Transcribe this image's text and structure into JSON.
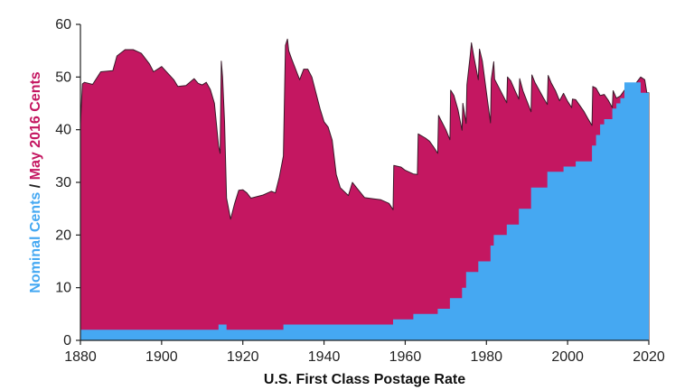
{
  "chart_data": {
    "type": "area",
    "title": "",
    "xlabel": "U.S. First Class Postage Rate",
    "ylabel_parts": [
      {
        "text": "Nominal Cents",
        "color": "#45a8f2"
      },
      {
        "text": " / ",
        "color": "#222222"
      },
      {
        "text": "May 2016 Cents",
        "color": "#c41761"
      }
    ],
    "xlim": [
      1880,
      2020
    ],
    "ylim": [
      0,
      60
    ],
    "x_ticks": [
      "1880",
      "1900",
      "1920",
      "1940",
      "1960",
      "1980",
      "2000",
      "2020"
    ],
    "y_ticks": [
      "0",
      "10",
      "20",
      "30",
      "40",
      "50",
      "60"
    ],
    "grid": false,
    "series": [
      {
        "name": "May 2016 Cents",
        "color": "#c41761",
        "points": [
          [
            1880,
            41
          ],
          [
            1880.5,
            48.7
          ],
          [
            1881,
            49
          ],
          [
            1883,
            48.6
          ],
          [
            1885,
            51
          ],
          [
            1888,
            51.2
          ],
          [
            1889,
            54
          ],
          [
            1891,
            55.2
          ],
          [
            1893,
            55.2
          ],
          [
            1895,
            54.5
          ],
          [
            1897,
            52.5
          ],
          [
            1898,
            51
          ],
          [
            1900,
            52
          ],
          [
            1903,
            49.5
          ],
          [
            1904,
            48.2
          ],
          [
            1906,
            48.4
          ],
          [
            1908,
            49.7
          ],
          [
            1909,
            48.8
          ],
          [
            1910,
            48.5
          ],
          [
            1911,
            49
          ],
          [
            1912,
            47.6
          ],
          [
            1913,
            45
          ],
          [
            1914,
            37
          ],
          [
            1914.4,
            35.5
          ],
          [
            1914.7,
            53
          ],
          [
            1915,
            50
          ],
          [
            1915.5,
            41.5
          ],
          [
            1916,
            27
          ],
          [
            1917,
            23
          ],
          [
            1918,
            26
          ],
          [
            1919,
            28.5
          ],
          [
            1920,
            28.6
          ],
          [
            1921,
            28
          ],
          [
            1922,
            27
          ],
          [
            1925,
            27.6
          ],
          [
            1927,
            28.3
          ],
          [
            1928,
            28
          ],
          [
            1929,
            31
          ],
          [
            1930,
            35
          ],
          [
            1930.5,
            56
          ],
          [
            1931,
            57.2
          ],
          [
            1931.3,
            55
          ],
          [
            1932,
            53.5
          ],
          [
            1933,
            51.5
          ],
          [
            1934,
            49.5
          ],
          [
            1935,
            51.5
          ],
          [
            1936,
            51.5
          ],
          [
            1937,
            50
          ],
          [
            1938,
            47
          ],
          [
            1939,
            44
          ],
          [
            1940,
            41.5
          ],
          [
            1941,
            40.5
          ],
          [
            1942,
            38
          ],
          [
            1943,
            31.5
          ],
          [
            1944,
            29
          ],
          [
            1946,
            27.5
          ],
          [
            1947,
            30
          ],
          [
            1948,
            29
          ],
          [
            1950,
            27.1
          ],
          [
            1952,
            26.9
          ],
          [
            1954,
            26.7
          ],
          [
            1956,
            26
          ],
          [
            1957,
            24.8
          ],
          [
            1957.2,
            33.2
          ],
          [
            1959,
            32.9
          ],
          [
            1960,
            32.3
          ],
          [
            1962,
            31.6
          ],
          [
            1963,
            31.5
          ],
          [
            1963.2,
            39.2
          ],
          [
            1965,
            38.4
          ],
          [
            1966,
            37.8
          ],
          [
            1967,
            36.7
          ],
          [
            1968,
            35.5
          ],
          [
            1968.2,
            42.7
          ],
          [
            1970,
            40
          ],
          [
            1971,
            38.1
          ],
          [
            1971.2,
            47.5
          ],
          [
            1972,
            46.5
          ],
          [
            1973,
            43.8
          ],
          [
            1974,
            39.9
          ],
          [
            1974.2,
            45
          ],
          [
            1975,
            41.2
          ],
          [
            1975.2,
            48.5
          ],
          [
            1976,
            54
          ],
          [
            1976.3,
            56.5
          ],
          [
            1977,
            53.5
          ],
          [
            1978,
            49.5
          ],
          [
            1978.3,
            55.3
          ],
          [
            1979,
            53
          ],
          [
            1980,
            47.1
          ],
          [
            1981,
            41.3
          ],
          [
            1981.2,
            49.6
          ],
          [
            1981.8,
            52.9
          ],
          [
            1982,
            49.6
          ],
          [
            1984,
            46.6
          ],
          [
            1985,
            45.1
          ],
          [
            1985.2,
            50
          ],
          [
            1986,
            49.3
          ],
          [
            1987,
            47.5
          ],
          [
            1988,
            45.8
          ],
          [
            1988.2,
            49.7
          ],
          [
            1989,
            47.4
          ],
          [
            1990,
            45.4
          ],
          [
            1991,
            43.4
          ],
          [
            1991.2,
            50.4
          ],
          [
            1992,
            48.9
          ],
          [
            1993,
            47.5
          ],
          [
            1994,
            46.1
          ],
          [
            1995,
            44.8
          ],
          [
            1995.2,
            50.3
          ],
          [
            1996,
            48.8
          ],
          [
            1997,
            47.4
          ],
          [
            1998,
            45.5
          ],
          [
            1999,
            46.9
          ],
          [
            2000,
            45.4
          ],
          [
            2001,
            44.2
          ],
          [
            2001.2,
            45.8
          ],
          [
            2002,
            45.7
          ],
          [
            2003,
            44.6
          ],
          [
            2004,
            43.5
          ],
          [
            2005,
            42.1
          ],
          [
            2006,
            40.8
          ],
          [
            2006.2,
            48.2
          ],
          [
            2007,
            47.9
          ],
          [
            2008,
            46.5
          ],
          [
            2009,
            46.7
          ],
          [
            2010,
            45.6
          ],
          [
            2011,
            44.2
          ],
          [
            2011.2,
            47.4
          ],
          [
            2012,
            46
          ],
          [
            2013,
            46.4
          ],
          [
            2014,
            47.5
          ],
          [
            2015,
            48
          ],
          [
            2016,
            47.5
          ],
          [
            2017,
            49
          ],
          [
            2018,
            50
          ],
          [
            2019,
            49.5
          ],
          [
            2019.5,
            47
          ],
          [
            2020,
            47
          ]
        ]
      },
      {
        "name": "Nominal Cents",
        "color": "#45a8f2",
        "points": [
          [
            1880,
            2
          ],
          [
            1914,
            2
          ],
          [
            1914,
            3
          ],
          [
            1916,
            3
          ],
          [
            1916,
            2
          ],
          [
            1930,
            2
          ],
          [
            1930,
            3
          ],
          [
            1957,
            3
          ],
          [
            1957,
            4
          ],
          [
            1962,
            4
          ],
          [
            1962,
            5
          ],
          [
            1968,
            5
          ],
          [
            1968,
            6
          ],
          [
            1971,
            6
          ],
          [
            1971,
            8
          ],
          [
            1974,
            8
          ],
          [
            1974,
            10
          ],
          [
            1975,
            10
          ],
          [
            1975,
            13
          ],
          [
            1978,
            13
          ],
          [
            1978,
            15
          ],
          [
            1981,
            15
          ],
          [
            1981,
            18
          ],
          [
            1981.8,
            18
          ],
          [
            1981.8,
            20
          ],
          [
            1985,
            20
          ],
          [
            1985,
            22
          ],
          [
            1988,
            22
          ],
          [
            1988,
            25
          ],
          [
            1991,
            25
          ],
          [
            1991,
            29
          ],
          [
            1995,
            29
          ],
          [
            1995,
            32
          ],
          [
            1999,
            32
          ],
          [
            1999,
            33
          ],
          [
            2002,
            33
          ],
          [
            2002,
            34
          ],
          [
            2006,
            34
          ],
          [
            2006,
            37
          ],
          [
            2007,
            37
          ],
          [
            2007,
            39
          ],
          [
            2008,
            39
          ],
          [
            2008,
            41
          ],
          [
            2009,
            41
          ],
          [
            2009,
            42
          ],
          [
            2011,
            42
          ],
          [
            2011,
            44
          ],
          [
            2012,
            44
          ],
          [
            2012,
            45
          ],
          [
            2013,
            45
          ],
          [
            2013,
            46
          ],
          [
            2014,
            46
          ],
          [
            2014,
            49
          ],
          [
            2018,
            49
          ],
          [
            2018,
            47
          ],
          [
            2020,
            47
          ]
        ]
      }
    ]
  }
}
